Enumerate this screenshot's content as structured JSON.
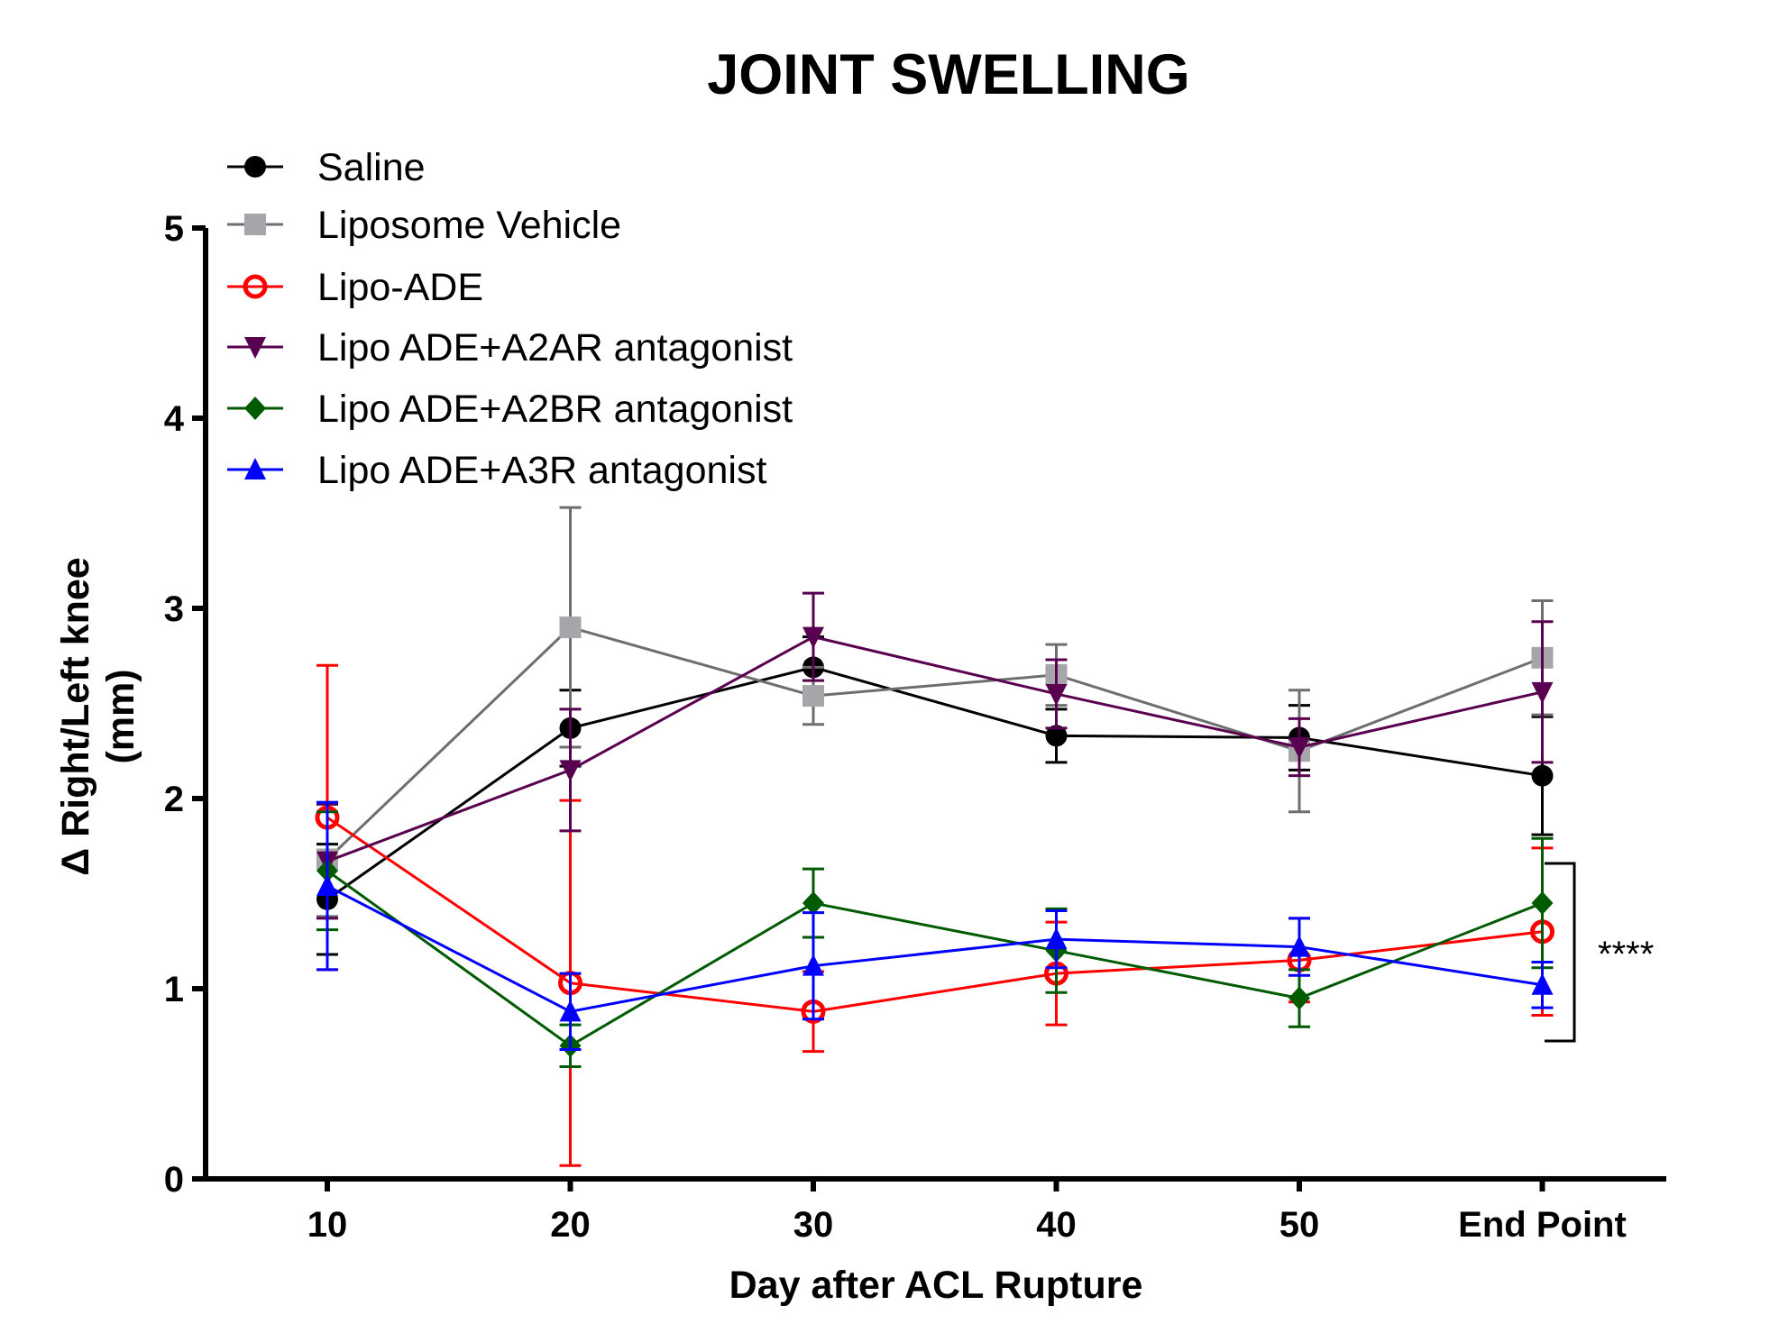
{
  "chart_data": {
    "type": "line",
    "title": "JOINT SWELLING",
    "xlabel": "Day after ACL Rupture",
    "ylabel": "Δ Right/Left knee",
    "ylabel_unit": "(mm)",
    "categories": [
      "10",
      "20",
      "30",
      "40",
      "50",
      "End Point"
    ],
    "ylim": [
      0,
      5
    ],
    "yticks": [
      "0",
      "1",
      "2",
      "3",
      "4",
      "5"
    ],
    "grid": false,
    "legend_position": "top-left",
    "significance": {
      "label": "****",
      "spans": "lower group at End Point"
    },
    "series": [
      {
        "name": "Saline",
        "color": "#000000",
        "marker": "circle",
        "values": [
          1.47,
          2.37,
          2.69,
          2.33,
          2.32,
          2.12
        ],
        "err": [
          0.29,
          0.2,
          0.16,
          0.14,
          0.17,
          0.31
        ]
      },
      {
        "name": "Liposome Vehicle",
        "color": "#6e6e6e",
        "marker_color": "#a6a6aa",
        "marker": "square",
        "values": [
          1.68,
          2.9,
          2.54,
          2.65,
          2.25,
          2.74
        ],
        "err": [
          0.3,
          0.63,
          0.15,
          0.16,
          0.32,
          0.3
        ]
      },
      {
        "name": "Lipo-ADE",
        "color": "#ff0000",
        "marker": "open-circle",
        "values": [
          1.9,
          1.03,
          0.88,
          1.08,
          1.15,
          1.3
        ],
        "err": [
          0.8,
          0.96,
          0.21,
          0.27,
          0.22,
          0.44
        ]
      },
      {
        "name": "Lipo ADE+A2AR antagonist",
        "color": "#5a0050",
        "marker": "triangle-down",
        "values": [
          1.67,
          2.15,
          2.85,
          2.55,
          2.27,
          2.56
        ],
        "err": [
          0.3,
          0.32,
          0.23,
          0.18,
          0.15,
          0.37
        ]
      },
      {
        "name": "Lipo ADE+A2BR antagonist",
        "color": "#005a00",
        "marker": "diamond",
        "values": [
          1.62,
          0.7,
          1.45,
          1.2,
          0.95,
          1.45
        ],
        "err": [
          0.31,
          0.11,
          0.18,
          0.22,
          0.15,
          0.34
        ]
      },
      {
        "name": "Lipo ADE+A3R antagonist",
        "color": "#0000ff",
        "marker": "triangle-up",
        "values": [
          1.54,
          0.88,
          1.12,
          1.26,
          1.22,
          1.02
        ],
        "err": [
          0.44,
          0.2,
          0.28,
          0.15,
          0.15,
          0.12
        ]
      }
    ]
  }
}
